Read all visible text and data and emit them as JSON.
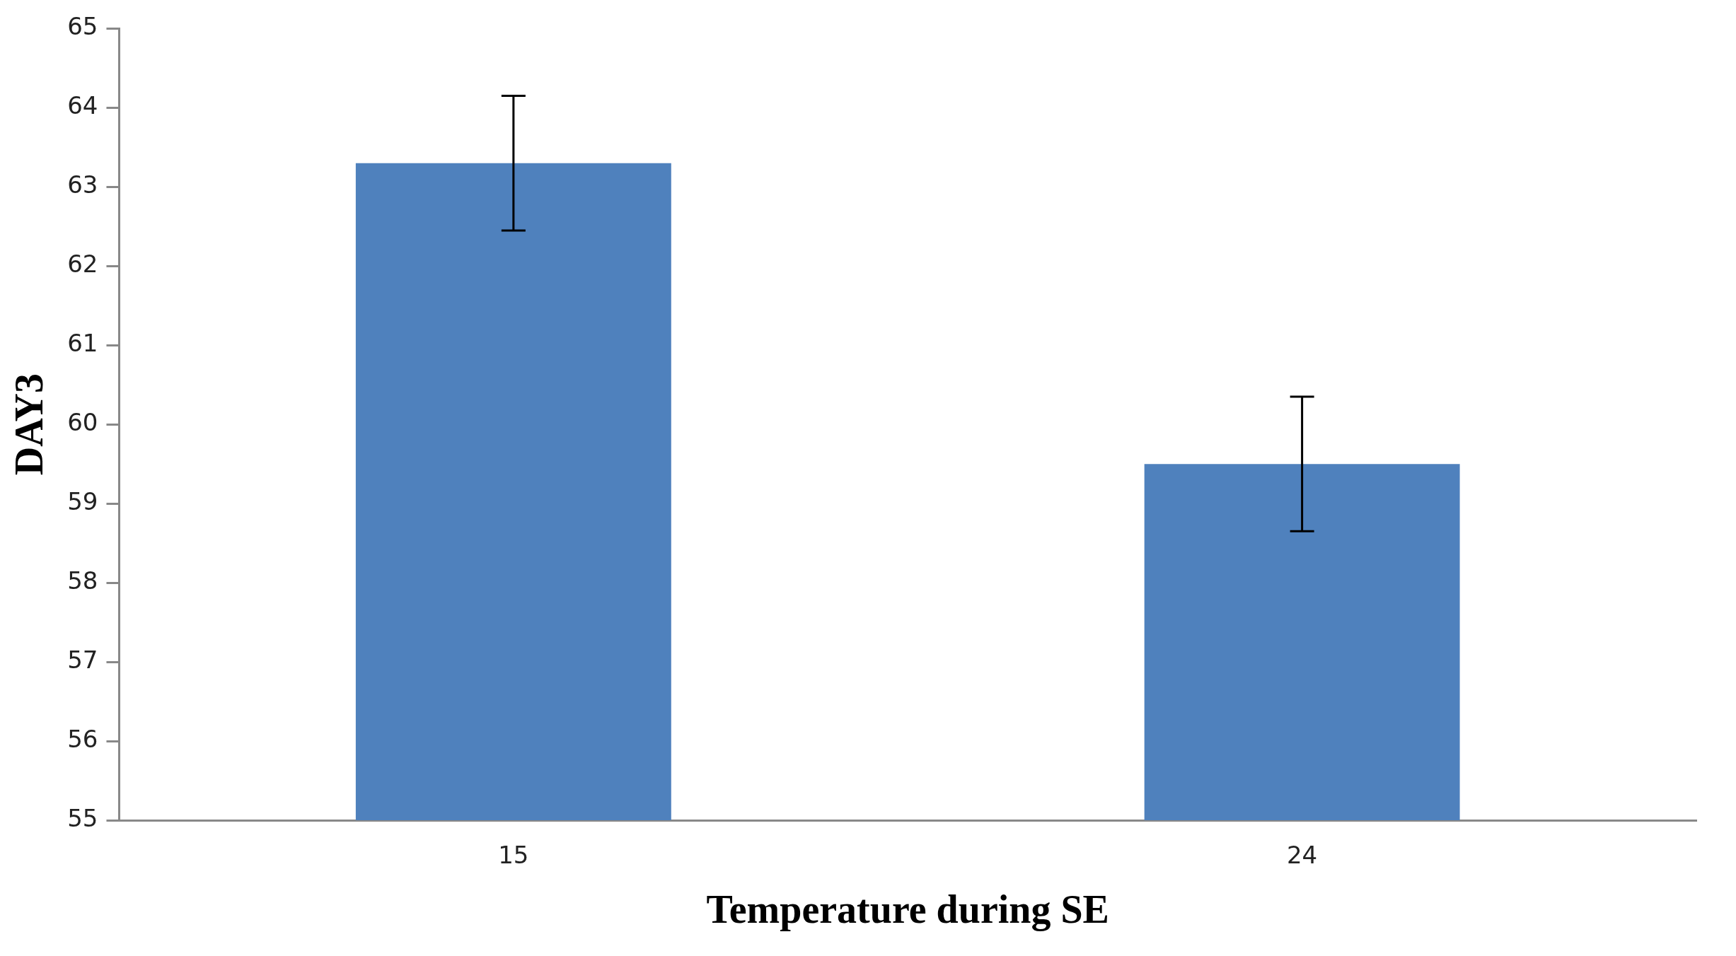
{
  "chart_data": {
    "type": "bar",
    "xlabel": "Temperature during SE",
    "ylabel": "DAY3",
    "categories": [
      "15",
      "24"
    ],
    "values": [
      63.3,
      59.5
    ],
    "errors": [
      0.85,
      0.85
    ],
    "color": "#4f81bd",
    "ylim": [
      55,
      65
    ],
    "yticks": [
      55,
      56,
      57,
      58,
      59,
      60,
      61,
      62,
      63,
      64,
      65
    ],
    "grid": false,
    "legend": false
  }
}
